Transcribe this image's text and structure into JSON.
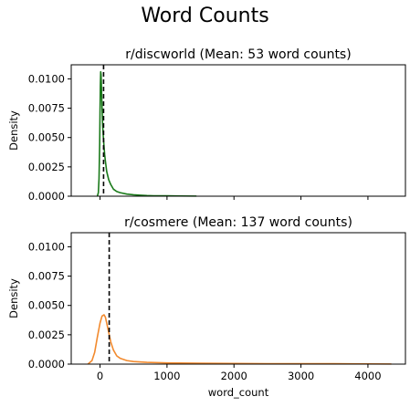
{
  "figure": {
    "title": "Word Counts"
  },
  "chart_data": [
    {
      "type": "area",
      "title": "r/discworld (Mean: 53 word counts)",
      "xlabel": "",
      "ylabel": "Density",
      "xlim": [
        -430,
        4560
      ],
      "ylim": [
        0,
        0.0112
      ],
      "xticks": [
        0,
        1000,
        2000,
        3000,
        4000
      ],
      "xtick_labels": [],
      "yticks": [
        0,
        0.0025,
        0.005,
        0.0075,
        0.01
      ],
      "ytick_labels": [
        "0.0000",
        "0.0025",
        "0.0050",
        "0.0075",
        "0.0100"
      ],
      "mean": 53,
      "color": "#1a7a1a",
      "series": [
        {
          "x": [
            -40,
            -25,
            -15,
            -5,
            0,
            5,
            10,
            15,
            20,
            25,
            30,
            40,
            50,
            60,
            70,
            80,
            100,
            130,
            160,
            200,
            250,
            300,
            400,
            500,
            600,
            700,
            800,
            1000,
            1200,
            1440
          ],
          "y": [
            0,
            0.0003,
            0.0015,
            0.0045,
            0.0072,
            0.0095,
            0.0106,
            0.0104,
            0.0096,
            0.0085,
            0.0075,
            0.006,
            0.005,
            0.0042,
            0.0035,
            0.003,
            0.0021,
            0.0014,
            0.001,
            0.0006,
            0.0004,
            0.0003,
            0.00018,
            0.00012,
            8e-05,
            5e-05,
            4e-05,
            3e-05,
            2e-05,
            1e-05
          ]
        }
      ]
    },
    {
      "type": "area",
      "title": "r/cosmere (Mean: 137 word counts)",
      "xlabel": "word_count",
      "ylabel": "Density",
      "xlim": [
        -430,
        4560
      ],
      "ylim": [
        0,
        0.0112
      ],
      "xticks": [
        0,
        1000,
        2000,
        3000,
        4000
      ],
      "xtick_labels": [
        "0",
        "1000",
        "2000",
        "3000",
        "4000"
      ],
      "yticks": [
        0,
        0.0025,
        0.005,
        0.0075,
        0.01
      ],
      "ytick_labels": [
        "0.0000",
        "0.0025",
        "0.0050",
        "0.0075",
        "0.0100"
      ],
      "mean": 137,
      "color": "#f28a2e",
      "series": [
        {
          "x": [
            -180,
            -120,
            -80,
            -40,
            0,
            30,
            60,
            80,
            100,
            130,
            160,
            200,
            250,
            300,
            400,
            500,
            700,
            1000,
            1500,
            2000,
            2500,
            3000,
            3500,
            4000,
            4350
          ],
          "y": [
            0,
            0.0003,
            0.001,
            0.0023,
            0.0035,
            0.0041,
            0.0042,
            0.004,
            0.0035,
            0.0027,
            0.0019,
            0.0012,
            0.0007,
            0.0005,
            0.0003,
            0.00022,
            0.00015,
            0.0001,
            7e-05,
            5e-05,
            4e-05,
            3e-05,
            3e-05,
            2e-05,
            1e-05
          ]
        }
      ]
    }
  ]
}
